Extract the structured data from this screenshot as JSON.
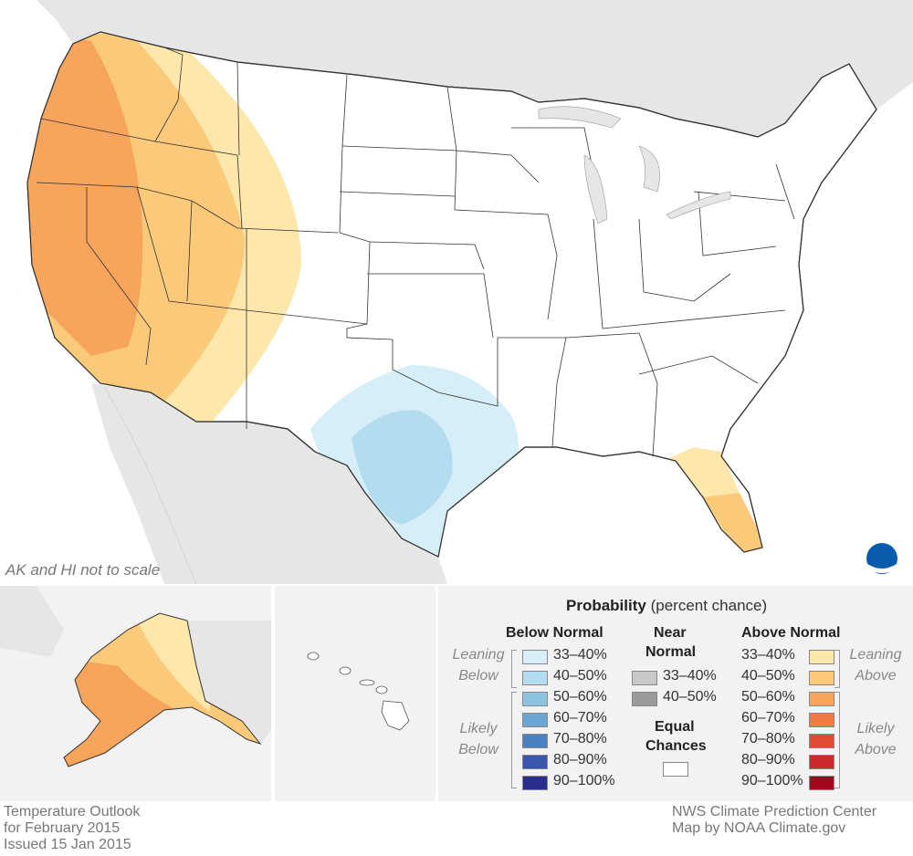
{
  "map": {
    "scale_note": "AK and HI not to scale",
    "logo_text": "NOAA"
  },
  "footer": {
    "left_line1": "Temperature Outlook",
    "left_line2": "for February 2015",
    "left_line3": "Issued 15 Jan 2015",
    "right_line1": "NWS Climate Prediction Center",
    "right_line2": "Map by NOAA Climate.gov"
  },
  "legend": {
    "title_bold": "Probability",
    "title_rest": " (percent chance)",
    "below_heading": "Below Normal",
    "near_heading_1": "Near",
    "near_heading_2": "Normal",
    "above_heading": "Above Normal",
    "leaning_below_1": "Leaning",
    "leaning_below_2": "Below",
    "likely_below_1": "Likely",
    "likely_below_2": "Below",
    "leaning_above_1": "Leaning",
    "leaning_above_2": "Above",
    "likely_above_1": "Likely",
    "likely_above_2": "Above",
    "equal_1": "Equal",
    "equal_2": "Chances",
    "below": [
      {
        "label": "33–40%",
        "color": "#d6eef7"
      },
      {
        "label": "40–50%",
        "color": "#b3dcee"
      },
      {
        "label": "50–60%",
        "color": "#8cc3e1"
      },
      {
        "label": "60–70%",
        "color": "#6aa5d3"
      },
      {
        "label": "70–80%",
        "color": "#4b80c1"
      },
      {
        "label": "80–90%",
        "color": "#3a55ab"
      },
      {
        "label": "90–100%",
        "color": "#2b2d8e"
      }
    ],
    "near": [
      {
        "label": "33–40%",
        "color": "#c8c8c8"
      },
      {
        "label": "40–50%",
        "color": "#9a9a9a"
      }
    ],
    "above": [
      {
        "label": "33–40%",
        "color": "#fde7aa"
      },
      {
        "label": "40–50%",
        "color": "#fbc97a"
      },
      {
        "label": "50–60%",
        "color": "#f7a45c"
      },
      {
        "label": "60–70%",
        "color": "#f07a43"
      },
      {
        "label": "70–80%",
        "color": "#e24b33"
      },
      {
        "label": "80–90%",
        "color": "#cb2a2a"
      },
      {
        "label": "90–100%",
        "color": "#a3081f"
      }
    ],
    "equal_color": "#ffffff"
  },
  "colors": {
    "ocean": "#ffffff",
    "land_outside": "#e6e6e6",
    "lean_above": "#fde7aa",
    "above_40_50": "#fbc97a",
    "above_50_60": "#f7a45c",
    "lean_below": "#d6eef7",
    "below_40_50": "#b3dcee"
  }
}
